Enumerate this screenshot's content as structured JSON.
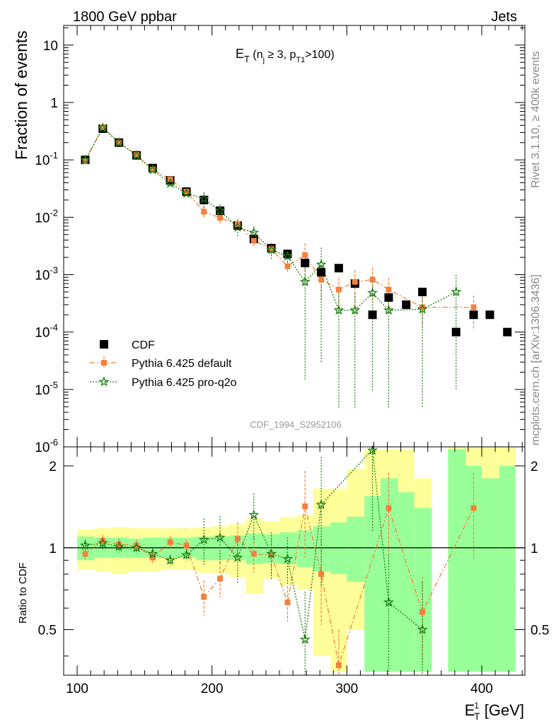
{
  "header": {
    "left": "1800 GeV ppbar",
    "right": "Jets",
    "title_main": "E",
    "title_sub": "T",
    "title_rest_a": " (n",
    "title_rest_a_sub": "j",
    "title_rest_b": " ≥ 3, p",
    "title_rest_b_sub": "T1",
    "title_rest_c": ">100)",
    "side_top": "Rivet 3.1.10, ≥ 400k events",
    "side_bottom": "mcplots.cern.ch [arXiv:1306.3436]",
    "watermark": "CDF_1994_S2952106"
  },
  "axes": {
    "ylabel_top": "Fraction of events",
    "ylabel_bottom": "Ratio to CDF",
    "xlabel_main": "E",
    "xlabel_sup": "1",
    "xlabel_sub": "T",
    "xlabel_unit": " [GeV]"
  },
  "colors": {
    "cdf": "#000000",
    "pythia_default": "#f4803b",
    "pythia_proq2o": "#1d7a12",
    "band_inner": "#99ff99",
    "band_outer": "#ffff99"
  },
  "chart_data": [
    {
      "type": "scatter",
      "yscale": "log",
      "xlim": [
        90,
        432
      ],
      "ylim": [
        1e-06,
        22
      ],
      "yticks": [
        "10^-6",
        "10^-5",
        "10^-4",
        "10^-3",
        "10^-2",
        "10^-1",
        "1",
        "10"
      ],
      "legend": [
        "CDF",
        "Pythia 6.425 default",
        "Pythia 6.425 pro-q2o"
      ],
      "legend_position": "bottom-left",
      "series": [
        {
          "name": "CDF",
          "x": [
            106,
            119,
            131,
            144,
            156,
            169,
            181,
            194,
            206,
            219,
            231,
            244,
            256,
            269,
            281,
            294,
            306,
            319,
            331,
            344,
            356,
            381,
            394,
            406,
            419
          ],
          "y": [
            0.1,
            0.35,
            0.2,
            0.12,
            0.072,
            0.044,
            0.028,
            0.02,
            0.013,
            0.0072,
            0.0042,
            0.0029,
            0.0023,
            0.0016,
            0.0011,
            0.0013,
            0.0007,
            0.0002,
            0.0004,
            0.0003,
            0.0005,
            0.0001,
            0.0002,
            0.0002,
            0.0001
          ]
        },
        {
          "name": "Pythia 6.425 default",
          "x": [
            106,
            119,
            131,
            144,
            156,
            169,
            181,
            194,
            206,
            219,
            231,
            244,
            256,
            269,
            281,
            294,
            306,
            319,
            331,
            356,
            394
          ],
          "y": [
            0.095,
            0.37,
            0.2,
            0.122,
            0.068,
            0.046,
            0.028,
            0.0125,
            0.0098,
            0.0076,
            0.0039,
            0.0028,
            0.0014,
            0.0022,
            0.00082,
            0.00055,
            0.00075,
            0.00082,
            0.00055,
            0.00027,
            0.00027
          ]
        },
        {
          "name": "Pythia 6.425 pro-q2o",
          "x": [
            106,
            119,
            131,
            144,
            156,
            169,
            181,
            194,
            206,
            219,
            231,
            244,
            256,
            269,
            281,
            294,
            306,
            319,
            331,
            356,
            381
          ],
          "y": [
            0.1,
            0.36,
            0.2,
            0.12,
            0.067,
            0.039,
            0.026,
            0.021,
            0.013,
            0.0067,
            0.0054,
            0.0027,
            0.0021,
            0.00075,
            0.0015,
            0.00024,
            0.00024,
            0.00048,
            0.00024,
            0.00025,
            0.0005
          ]
        }
      ]
    },
    {
      "type": "scatter",
      "ylim": [
        0.34,
        2.35
      ],
      "yticks": [
        "0.5",
        "1",
        "2"
      ],
      "xticks": [
        "100",
        "200",
        "300",
        "400"
      ],
      "bins": [
        {
          "lo": 100,
          "hi": 113,
          "inner": [
            0.9,
            1.1
          ],
          "outer": [
            0.83,
            1.17
          ]
        },
        {
          "lo": 113,
          "hi": 125,
          "inner": [
            0.92,
            1.09
          ],
          "outer": [
            0.82,
            1.18
          ]
        },
        {
          "lo": 125,
          "hi": 138,
          "inner": [
            0.92,
            1.09
          ],
          "outer": [
            0.8,
            1.19
          ]
        },
        {
          "lo": 138,
          "hi": 150,
          "inner": [
            0.92,
            1.08
          ],
          "outer": [
            0.82,
            1.18
          ]
        },
        {
          "lo": 150,
          "hi": 163,
          "inner": [
            0.92,
            1.09
          ],
          "outer": [
            0.82,
            1.18
          ]
        },
        {
          "lo": 163,
          "hi": 175,
          "inner": [
            0.92,
            1.09
          ],
          "outer": [
            0.83,
            1.18
          ]
        },
        {
          "lo": 175,
          "hi": 188,
          "inner": [
            0.92,
            1.09
          ],
          "outer": [
            0.83,
            1.18
          ]
        },
        {
          "lo": 188,
          "hi": 200,
          "inner": [
            0.9,
            1.1
          ],
          "outer": [
            0.81,
            1.19
          ]
        },
        {
          "lo": 200,
          "hi": 213,
          "inner": [
            0.9,
            1.1
          ],
          "outer": [
            0.8,
            1.2
          ]
        },
        {
          "lo": 213,
          "hi": 225,
          "inner": [
            0.9,
            1.11
          ],
          "outer": [
            0.78,
            1.22
          ]
        },
        {
          "lo": 225,
          "hi": 238,
          "inner": [
            0.87,
            1.13
          ],
          "outer": [
            0.68,
            1.28
          ]
        },
        {
          "lo": 238,
          "hi": 250,
          "inner": [
            0.88,
            1.12
          ],
          "outer": [
            0.77,
            1.25
          ]
        },
        {
          "lo": 250,
          "hi": 263,
          "inner": [
            0.87,
            1.14
          ],
          "outer": [
            0.73,
            1.3
          ]
        },
        {
          "lo": 263,
          "hi": 275,
          "inner": [
            0.85,
            1.16
          ],
          "outer": [
            0.7,
            1.32
          ]
        },
        {
          "lo": 275,
          "hi": 288,
          "inner": [
            0.82,
            1.2
          ],
          "outer": [
            0.4,
            1.65
          ]
        },
        {
          "lo": 288,
          "hi": 300,
          "inner": [
            0.8,
            1.24
          ],
          "outer": [
            0.35,
            1.65
          ]
        },
        {
          "lo": 300,
          "hi": 313,
          "inner": [
            0.75,
            1.3
          ],
          "outer": [
            0.5,
            1.95
          ]
        },
        {
          "lo": 313,
          "hi": 325,
          "inner": [
            0.35,
            1.55
          ],
          "outer": [
            0.35,
            2.3
          ]
        },
        {
          "lo": 325,
          "hi": 338,
          "inner": [
            0.35,
            1.8
          ],
          "outer": [
            0.35,
            2.3
          ]
        },
        {
          "lo": 338,
          "hi": 350,
          "inner": [
            0.35,
            1.6
          ],
          "outer": [
            0.35,
            2.3
          ]
        },
        {
          "lo": 350,
          "hi": 363,
          "inner": [
            0.35,
            1.4
          ],
          "outer": [
            0.35,
            1.8
          ]
        },
        {
          "lo": 375,
          "hi": 388,
          "inner": [
            0.35,
            2.3
          ],
          "outer": [
            0.35,
            2.35
          ]
        },
        {
          "lo": 388,
          "hi": 400,
          "inner": [
            0.35,
            2.0
          ],
          "outer": [
            0.35,
            2.35
          ]
        },
        {
          "lo": 400,
          "hi": 413,
          "inner": [
            0.35,
            1.8
          ],
          "outer": [
            0.35,
            2.35
          ]
        },
        {
          "lo": 413,
          "hi": 425,
          "inner": [
            0.35,
            2.0
          ],
          "outer": [
            0.35,
            2.35
          ]
        }
      ],
      "reference_line": 1,
      "series": [
        {
          "name": "Pythia 6.425 default",
          "x": [
            106,
            119,
            131,
            144,
            156,
            169,
            181,
            194,
            206,
            219,
            231,
            244,
            256,
            269,
            281,
            294,
            331,
            356,
            394
          ],
          "y": [
            0.95,
            1.06,
            1.03,
            1.02,
            0.92,
            1.05,
            1.02,
            0.66,
            0.77,
            1.08,
            0.95,
            0.94,
            0.63,
            1.42,
            0.8,
            0.37,
            1.4,
            0.58,
            1.4
          ]
        },
        {
          "name": "Pythia 6.425 pro-q2o",
          "x": [
            106,
            119,
            131,
            144,
            156,
            169,
            181,
            194,
            206,
            219,
            231,
            244,
            256,
            269,
            281,
            319,
            331,
            356
          ],
          "y": [
            1.02,
            1.04,
            1.01,
            1.0,
            0.95,
            0.9,
            0.94,
            1.07,
            1.09,
            0.92,
            1.32,
            0.95,
            0.91,
            0.46,
            1.44,
            2.3,
            0.63,
            0.5
          ]
        }
      ]
    }
  ]
}
